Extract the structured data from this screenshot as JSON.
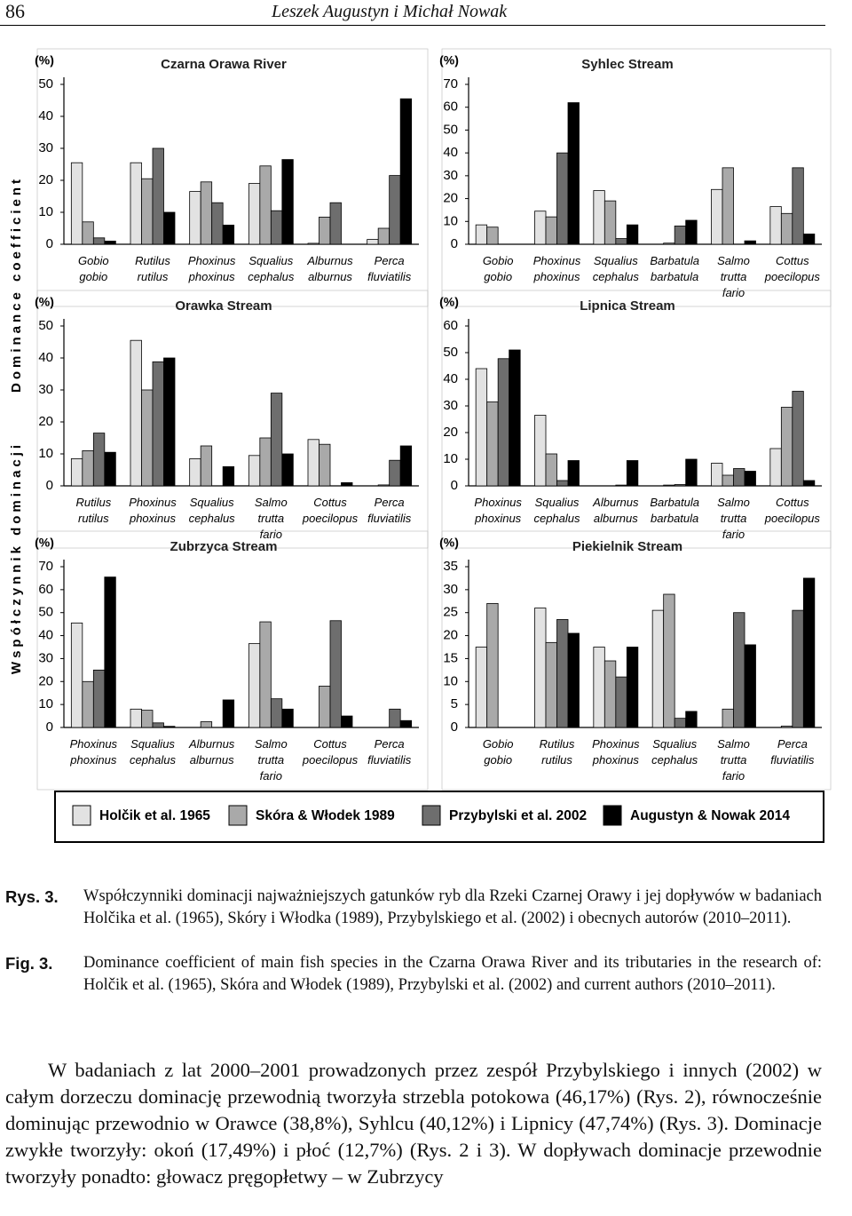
{
  "header": {
    "page_number": "86",
    "authors": "Leszek Augustyn i Michał Nowak"
  },
  "y_axis_label": {
    "polish": "Współczynnik dominacji",
    "english": "Dominance coefficient"
  },
  "legend": [
    {
      "name": "Holčik et al. 1965",
      "color": "#e2e2e2"
    },
    {
      "name": "Skóra & Włodek 1989",
      "color": "#a9a9a9"
    },
    {
      "name": "Przybylski et al. 2002",
      "color": "#6e6e6e"
    },
    {
      "name": "Augustyn & Nowak 2014",
      "color": "#000000"
    }
  ],
  "chart_data": [
    {
      "type": "bar",
      "title": "Czarna Orawa River",
      "unit": "(%)",
      "categories": [
        "Gobio gobio",
        "Rutilus rutilus",
        "Phoxinus phoxinus",
        "Squalius cephalus",
        "Alburnus alburnus",
        "Perca fluviatilis"
      ],
      "series": [
        {
          "values": [
            25.5,
            25.5,
            16.5,
            19,
            0.3,
            1.5
          ]
        },
        {
          "values": [
            7,
            20.5,
            19.5,
            24.5,
            8.5,
            5
          ]
        },
        {
          "values": [
            2,
            30,
            13,
            10.5,
            13,
            21.5
          ]
        },
        {
          "values": [
            1,
            10,
            6,
            26.5,
            0,
            45.5
          ]
        }
      ],
      "ylim": [
        0,
        50
      ],
      "yticks": [
        0,
        10,
        20,
        30,
        40,
        50
      ]
    },
    {
      "type": "bar",
      "title": "Syhlec Stream",
      "unit": "(%)",
      "categories": [
        "Gobio gobio",
        "Phoxinus phoxinus",
        "Squalius cephalus",
        "Barbatula barbatula",
        "Salmo trutta fario",
        "Cottus poecilopus"
      ],
      "series": [
        {
          "values": [
            8.5,
            14.5,
            23.5,
            0,
            24,
            16.5
          ]
        },
        {
          "values": [
            7.5,
            12,
            19,
            0.5,
            33.5,
            13.5
          ]
        },
        {
          "values": [
            0,
            40,
            2.5,
            8,
            0,
            33.5
          ]
        },
        {
          "values": [
            0,
            62,
            8.5,
            10.5,
            1.5,
            4.5
          ]
        }
      ],
      "ylim": [
        0,
        70
      ],
      "yticks": [
        0,
        10,
        20,
        30,
        40,
        50,
        60,
        70
      ]
    },
    {
      "type": "bar",
      "title": "Orawka Stream",
      "unit": "(%)",
      "categories": [
        "Rutilus rutilus",
        "Phoxinus phoxinus",
        "Squalius cephalus",
        "Salmo trutta fario",
        "Cottus poecilopus",
        "Perca fluviatilis"
      ],
      "series": [
        {
          "values": [
            8.5,
            45.5,
            8.5,
            9.5,
            14.5,
            0
          ]
        },
        {
          "values": [
            11,
            30,
            12.5,
            15,
            13,
            0.3
          ]
        },
        {
          "values": [
            16.5,
            38.8,
            0,
            29,
            0,
            8
          ]
        },
        {
          "values": [
            10.5,
            40,
            6,
            10,
            1,
            12.5
          ]
        }
      ],
      "ylim": [
        0,
        50
      ],
      "yticks": [
        0,
        10,
        20,
        30,
        40,
        50
      ]
    },
    {
      "type": "bar",
      "title": "Lipnica Stream",
      "unit": "(%)",
      "categories": [
        "Phoxinus phoxinus",
        "Squalius cephalus",
        "Alburnus alburnus",
        "Barbatula barbatula",
        "Salmo trutta fario",
        "Cottus poecilopus"
      ],
      "series": [
        {
          "values": [
            44,
            26.5,
            0,
            0,
            8.5,
            14
          ]
        },
        {
          "values": [
            31.5,
            12,
            0,
            0.3,
            4,
            29.5
          ]
        },
        {
          "values": [
            47.74,
            2,
            0.3,
            0.5,
            6.5,
            35.5
          ]
        },
        {
          "values": [
            51,
            9.5,
            9.5,
            10,
            5.5,
            2
          ]
        }
      ],
      "ylim": [
        0,
        60
      ],
      "yticks": [
        0,
        10,
        20,
        30,
        40,
        50,
        60
      ]
    },
    {
      "type": "bar",
      "title": "Zubrzyca Stream",
      "unit": "(%)",
      "categories": [
        "Phoxinus phoxinus",
        "Squalius cephalus",
        "Alburnus alburnus",
        "Salmo trutta fario",
        "Cottus poecilopus",
        "Perca fluviatilis"
      ],
      "series": [
        {
          "values": [
            45.5,
            8,
            0,
            36.5,
            0,
            0
          ]
        },
        {
          "values": [
            20,
            7.5,
            2.5,
            46,
            18,
            0
          ]
        },
        {
          "values": [
            25,
            2,
            0,
            12.5,
            46.5,
            8
          ]
        },
        {
          "values": [
            65.5,
            0.5,
            12,
            8,
            5,
            3
          ]
        }
      ],
      "ylim": [
        0,
        70
      ],
      "yticks": [
        0,
        10,
        20,
        30,
        40,
        50,
        60,
        70
      ]
    },
    {
      "type": "bar",
      "title": "Piekielnik Stream",
      "unit": "(%)",
      "categories": [
        "Gobio gobio",
        "Rutilus rutilus",
        "Phoxinus phoxinus",
        "Squalius cephalus",
        "Salmo trutta fario",
        "Perca fluviatilis"
      ],
      "series": [
        {
          "values": [
            17.5,
            26,
            17.5,
            25.5,
            0,
            0
          ]
        },
        {
          "values": [
            27,
            18.5,
            14.5,
            29,
            4,
            0.3
          ]
        },
        {
          "values": [
            0,
            23.5,
            11,
            2,
            25,
            25.5
          ]
        },
        {
          "values": [
            0,
            20.5,
            17.5,
            3.5,
            18,
            32.5
          ]
        }
      ],
      "ylim": [
        0,
        35
      ],
      "yticks": [
        0,
        5,
        10,
        15,
        20,
        25,
        30,
        35
      ]
    }
  ],
  "caption": {
    "polish_label": "Rys. 3.",
    "polish": "Współczynniki dominacji najważniejszych gatunków ryb dla Rzeki Czarnej Orawy i jej dopływów w badaniach Holčika et al. (1965), Skóry i Włodka (1989), Przybylskiego et al. (2002) i obecnych autorów (2010–2011).",
    "english_label": "Fig. 3.",
    "english": "Dominance coefficient of main fish species in the Czarna Orawa River and its tributaries in the research of: Holčik et al. (1965), Skóra and Włodek (1989), Przybylski et al. (2002) and current authors (2010–2011)."
  },
  "body": "W badaniach z lat 2000–2001 prowadzonych przez zespół Przybylskiego i innych (2002) w całym dorzeczu dominację przewodnią tworzyła strzebla potokowa (46,17%) (Rys. 2), równocześnie dominując przewodnio w Orawce (38,8%), Syhlcu (40,12%) i Lipnicy (47,74%) (Rys. 3). Dominacje zwykłe tworzyły: okoń (17,49%) i płoć (12,7%) (Rys. 2 i 3). W dopływach dominacje przewodnie tworzyły ponadto: głowacz pręgopłetwy – w Zubrzycy"
}
